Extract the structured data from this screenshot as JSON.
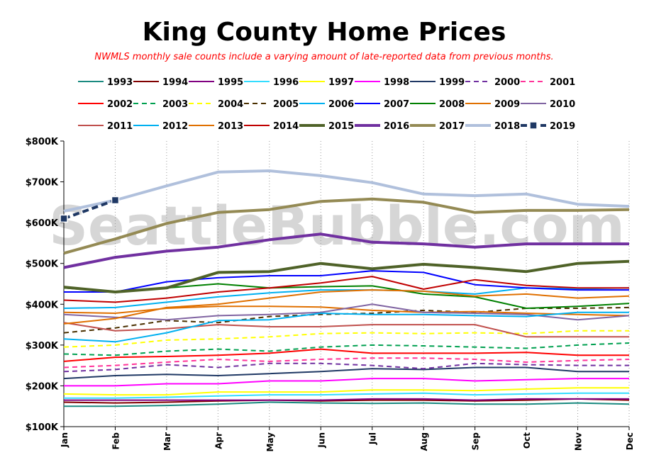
{
  "chart_data": {
    "type": "line",
    "title": "King County Home Prices",
    "subtitle": "NWMLS monthly sale counts include a varying amount of late-reported  data from previous months.",
    "watermark": "SeattleBubble.com",
    "xlabel": "",
    "ylabel": "",
    "categories": [
      "Jan",
      "Feb",
      "Mar",
      "Apr",
      "May",
      "Jun",
      "Jul",
      "Aug",
      "Sep",
      "Oct",
      "Nov",
      "Dec"
    ],
    "ylim": [
      100000,
      800000
    ],
    "yticks": [
      {
        "value": 100000,
        "label": "$100K"
      },
      {
        "value": 200000,
        "label": "$200K"
      },
      {
        "value": 300000,
        "label": "$300K"
      },
      {
        "value": 400000,
        "label": "$400K"
      },
      {
        "value": 500000,
        "label": "$500K"
      },
      {
        "value": 600000,
        "label": "$600K"
      },
      {
        "value": 700000,
        "label": "$700K"
      },
      {
        "value": 800000,
        "label": "$800K"
      }
    ],
    "grid": "vertical dotted",
    "legend_position": "top",
    "series": [
      {
        "name": "1993",
        "color": "#1a8a80",
        "dash": "solid",
        "width": 2,
        "values": [
          150000,
          150000,
          152000,
          155000,
          160000,
          158000,
          157000,
          158000,
          155000,
          155000,
          158000,
          155000
        ]
      },
      {
        "name": "1994",
        "color": "#800000",
        "dash": "solid",
        "width": 2,
        "values": [
          160000,
          158000,
          160000,
          163000,
          165000,
          163000,
          165000,
          165000,
          163000,
          165000,
          168000,
          165000
        ]
      },
      {
        "name": "1995",
        "color": "#800080",
        "dash": "solid",
        "width": 2,
        "values": [
          165000,
          165000,
          165000,
          165000,
          165000,
          165000,
          168000,
          168000,
          165000,
          168000,
          168000,
          168000
        ]
      },
      {
        "name": "1996",
        "color": "#33ddff",
        "dash": "solid",
        "width": 2,
        "values": [
          170000,
          170000,
          172000,
          175000,
          178000,
          178000,
          180000,
          182000,
          178000,
          180000,
          182000,
          182000
        ]
      },
      {
        "name": "1997",
        "color": "#ffff00",
        "dash": "solid",
        "width": 2,
        "values": [
          180000,
          178000,
          178000,
          185000,
          185000,
          185000,
          190000,
          190000,
          188000,
          192000,
          195000,
          195000
        ]
      },
      {
        "name": "1998",
        "color": "#ff00ff",
        "dash": "solid",
        "width": 2,
        "values": [
          200000,
          200000,
          205000,
          205000,
          212000,
          212000,
          218000,
          218000,
          212000,
          215000,
          218000,
          218000
        ]
      },
      {
        "name": "1999",
        "color": "#1f3864",
        "dash": "solid",
        "width": 2,
        "values": [
          218000,
          225000,
          228000,
          225000,
          230000,
          235000,
          242000,
          240000,
          245000,
          245000,
          235000,
          235000
        ]
      },
      {
        "name": "2000",
        "color": "#7030a0",
        "dash": "dashed",
        "width": 2,
        "values": [
          235000,
          240000,
          252000,
          245000,
          255000,
          255000,
          250000,
          242000,
          255000,
          252000,
          250000,
          250000
        ]
      },
      {
        "name": "2001",
        "color": "#ff3399",
        "dash": "dashed",
        "width": 2,
        "values": [
          245000,
          250000,
          258000,
          265000,
          260000,
          265000,
          268000,
          268000,
          265000,
          258000,
          262000,
          265000
        ]
      },
      {
        "name": "2002",
        "color": "#ff0000",
        "dash": "solid",
        "width": 2,
        "values": [
          260000,
          270000,
          272000,
          275000,
          280000,
          290000,
          280000,
          280000,
          280000,
          282000,
          275000,
          275000
        ]
      },
      {
        "name": "2003",
        "color": "#00a050",
        "dash": "dashed",
        "width": 2,
        "values": [
          278000,
          275000,
          285000,
          290000,
          285000,
          295000,
          300000,
          298000,
          295000,
          292000,
          300000,
          305000
        ]
      },
      {
        "name": "2004",
        "color": "#ffff00",
        "dash": "dashed",
        "width": 2,
        "values": [
          295000,
          300000,
          312000,
          315000,
          320000,
          328000,
          330000,
          328000,
          330000,
          328000,
          335000,
          335000
        ]
      },
      {
        "name": "2005",
        "color": "#4a3000",
        "dash": "dashed",
        "width": 2,
        "values": [
          330000,
          342000,
          360000,
          355000,
          370000,
          375000,
          378000,
          385000,
          380000,
          390000,
          390000,
          392000
        ]
      },
      {
        "name": "2006",
        "color": "#00b0f0",
        "dash": "solid",
        "width": 2,
        "values": [
          390000,
          392000,
          405000,
          418000,
          428000,
          435000,
          435000,
          432000,
          425000,
          440000,
          438000,
          440000
        ]
      },
      {
        "name": "2007",
        "color": "#0000ff",
        "dash": "solid",
        "width": 2,
        "values": [
          430000,
          430000,
          455000,
          465000,
          470000,
          470000,
          482000,
          478000,
          448000,
          440000,
          435000,
          435000
        ]
      },
      {
        "name": "2008",
        "color": "#008000",
        "dash": "solid",
        "width": 2,
        "values": [
          440000,
          430000,
          440000,
          450000,
          440000,
          443000,
          445000,
          425000,
          418000,
          390000,
          395000,
          402000
        ]
      },
      {
        "name": "2009",
        "color": "#e07000",
        "dash": "solid",
        "width": 2,
        "values": [
          380000,
          378000,
          390000,
          395000,
          395000,
          393000,
          385000,
          380000,
          382000,
          378000,
          375000,
          372000
        ]
      },
      {
        "name": "2010",
        "color": "#8064a2",
        "dash": "solid",
        "width": 2,
        "values": [
          375000,
          368000,
          362000,
          372000,
          375000,
          380000,
          400000,
          380000,
          378000,
          375000,
          362000,
          372000
        ]
      },
      {
        "name": "2011",
        "color": "#c0504d",
        "dash": "solid",
        "width": 2,
        "values": [
          355000,
          335000,
          340000,
          350000,
          345000,
          345000,
          350000,
          350000,
          350000,
          320000,
          320000,
          320000
        ]
      },
      {
        "name": "2012",
        "color": "#00b0f0",
        "dash": "solid",
        "width": 2,
        "values": [
          315000,
          308000,
          330000,
          360000,
          362000,
          378000,
          375000,
          375000,
          372000,
          370000,
          380000,
          380000
        ]
      },
      {
        "name": "2013",
        "color": "#e07000",
        "dash": "solid",
        "width": 2,
        "values": [
          352000,
          365000,
          392000,
          400000,
          415000,
          430000,
          435000,
          432000,
          420000,
          425000,
          415000,
          420000
        ]
      },
      {
        "name": "2014",
        "color": "#c00000",
        "dash": "solid",
        "width": 2,
        "values": [
          410000,
          405000,
          415000,
          430000,
          440000,
          452000,
          468000,
          437000,
          460000,
          446000,
          440000,
          440000
        ]
      },
      {
        "name": "2015",
        "color": "#4f6228",
        "dash": "solid",
        "width": 4,
        "values": [
          442000,
          430000,
          440000,
          478000,
          480000,
          500000,
          487000,
          498000,
          490000,
          480000,
          500000,
          505000
        ]
      },
      {
        "name": "2016",
        "color": "#7030a0",
        "dash": "solid",
        "width": 4,
        "values": [
          490000,
          515000,
          530000,
          540000,
          558000,
          572000,
          552000,
          548000,
          540000,
          548000,
          548000,
          548000
        ]
      },
      {
        "name": "2017",
        "color": "#948a54",
        "dash": "solid",
        "width": 4,
        "values": [
          525000,
          560000,
          598000,
          625000,
          632000,
          652000,
          658000,
          650000,
          625000,
          630000,
          630000,
          632000
        ]
      },
      {
        "name": "2018",
        "color": "#b0c0dc",
        "dash": "solid",
        "width": 4,
        "values": [
          628000,
          655000,
          690000,
          724000,
          727000,
          715000,
          698000,
          670000,
          666000,
          670000,
          645000,
          640000
        ]
      },
      {
        "name": "2019",
        "color": "#1f3864",
        "dash": "dashed",
        "width": 4,
        "markers": true,
        "values": [
          610000,
          655000,
          null,
          null,
          null,
          null,
          null,
          null,
          null,
          null,
          null,
          null
        ]
      }
    ]
  }
}
